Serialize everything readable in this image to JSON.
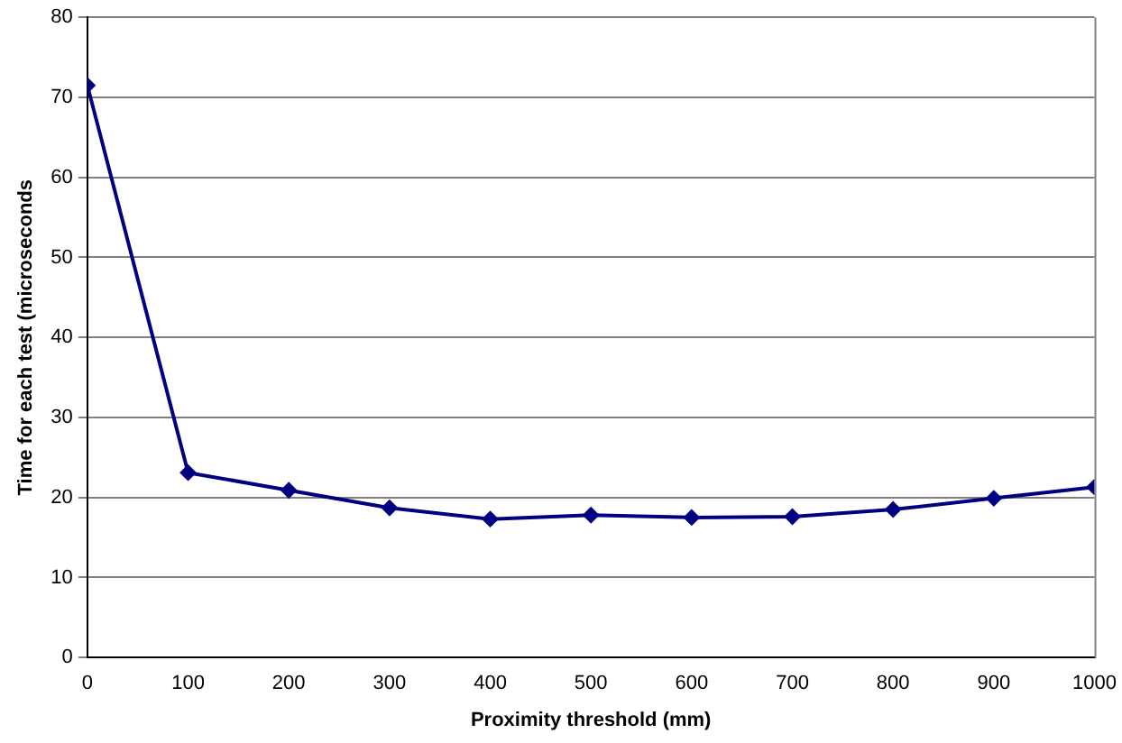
{
  "chart_data": {
    "type": "line",
    "xlabel": "Proximity threshold (mm)",
    "ylabel": "Time for each test (microseconds",
    "x": [
      0,
      100,
      200,
      300,
      400,
      500,
      600,
      700,
      800,
      900,
      1000
    ],
    "series": [
      {
        "color": "#000080",
        "values": [
          71.5,
          23.1,
          20.9,
          18.7,
          17.3,
          17.8,
          17.5,
          17.6,
          18.5,
          19.9,
          21.3
        ]
      }
    ],
    "xlim": [
      0,
      1000
    ],
    "xticks": [
      0,
      100,
      200,
      300,
      400,
      500,
      600,
      700,
      800,
      900,
      1000
    ],
    "ylim": [
      0,
      80
    ],
    "yticks": [
      0,
      10,
      20,
      30,
      40,
      50,
      60,
      70,
      80
    ],
    "grid": "y",
    "legend": false,
    "marker": "diamond",
    "line_style": "solid"
  }
}
